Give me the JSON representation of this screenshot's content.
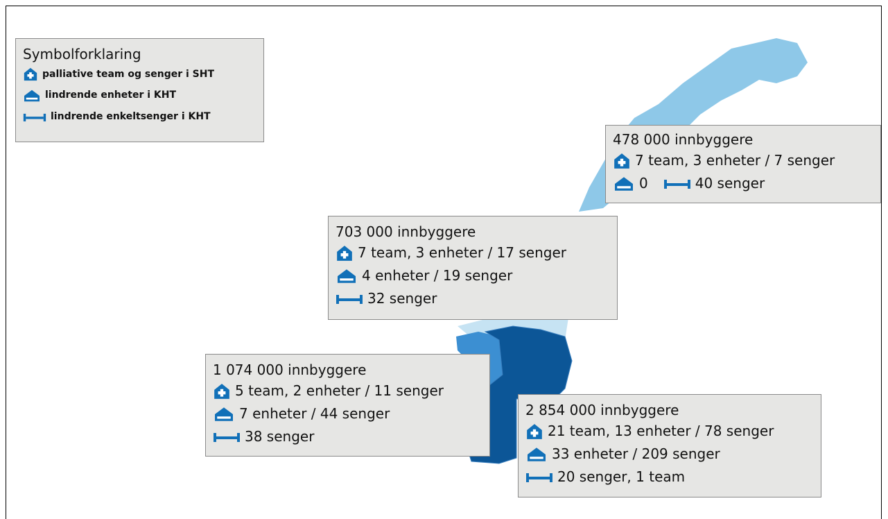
{
  "legend": {
    "title": "Symbolforklaring",
    "items": [
      "palliative team og senger i SHT",
      "lindrende enheter  i KHT",
      "lindrende enkeltsenger i KHT"
    ]
  },
  "regions": [
    {
      "population": "478 000 innbyggere",
      "team": "7 team, 3 enheter / 7 senger",
      "units": "0",
      "beds": "40 senger"
    },
    {
      "population": "703 000 innbyggere",
      "team": "7 team, 3 enheter / 17 senger",
      "units": "4 enheter / 19 senger",
      "beds": "32 senger"
    },
    {
      "population": "1 074 000 innbyggere",
      "team": "5 team, 2 enheter / 11 senger",
      "units": "7 enheter / 44 senger",
      "beds": "38 senger"
    },
    {
      "population": "2 854 000 innbyggere",
      "team": "21 team, 13 enheter / 78 senger",
      "units": "33 enheter / 209 senger",
      "beds": "20 senger, 1 team"
    }
  ]
}
